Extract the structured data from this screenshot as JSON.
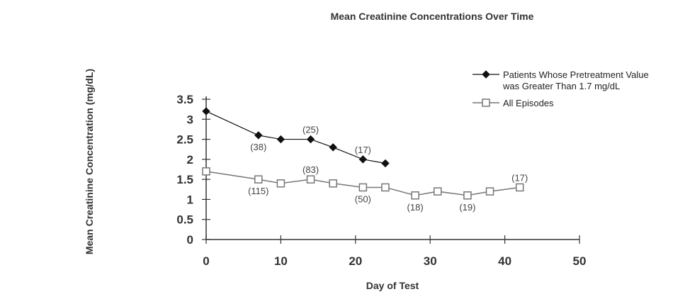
{
  "chart_data": {
    "type": "line",
    "title": "Mean Creatinine Concentrations Over Time",
    "xlabel": "Day of Test",
    "ylabel": "Mean Creatinine Concentration (mg/dL)",
    "xlim": [
      0,
      50
    ],
    "ylim": [
      0,
      3.5
    ],
    "xticks": [
      0,
      10,
      20,
      30,
      40,
      50
    ],
    "xtick_labels": [
      "0",
      "10",
      "20",
      "30",
      "40",
      "50"
    ],
    "yticks": [
      0,
      0.5,
      1,
      1.5,
      2,
      2.5,
      3,
      3.5
    ],
    "ytick_labels": [
      "0",
      "0.5",
      "1",
      "1.5",
      "2",
      "2.5",
      "3",
      "3.5"
    ],
    "grid": false,
    "legend_position": "top-right",
    "series": [
      {
        "name": "Patients Whose Pretreatment Value was Greater Than 1.7 mg/dL",
        "legend_lines": [
          "Patients Whose Pretreatment Value",
          "was Greater Than 1.7 mg/dL"
        ],
        "marker": "diamond-filled",
        "color": "#111111",
        "x": [
          0,
          7,
          10,
          14,
          17,
          21,
          24
        ],
        "y": [
          3.2,
          2.6,
          2.5,
          2.5,
          2.3,
          2.0,
          1.9
        ],
        "annotations": [
          {
            "x": 7,
            "y": 2.6,
            "text": "(38)",
            "position": "below"
          },
          {
            "x": 14,
            "y": 2.5,
            "text": "(25)",
            "position": "above"
          },
          {
            "x": 21,
            "y": 2.0,
            "text": "(17)",
            "position": "above"
          }
        ]
      },
      {
        "name": "All Episodes",
        "legend_lines": [
          "All Episodes"
        ],
        "marker": "square-open",
        "color": "#777777",
        "x": [
          0,
          7,
          10,
          14,
          17,
          21,
          24,
          28,
          31,
          35,
          38,
          42
        ],
        "y": [
          1.7,
          1.5,
          1.4,
          1.5,
          1.4,
          1.3,
          1.3,
          1.1,
          1.2,
          1.1,
          1.2,
          1.3
        ],
        "annotations": [
          {
            "x": 7,
            "y": 1.5,
            "text": "(115)",
            "position": "below"
          },
          {
            "x": 14,
            "y": 1.5,
            "text": "(83)",
            "position": "above"
          },
          {
            "x": 21,
            "y": 1.3,
            "text": "(50)",
            "position": "below"
          },
          {
            "x": 28,
            "y": 1.1,
            "text": "(18)",
            "position": "below"
          },
          {
            "x": 35,
            "y": 1.1,
            "text": "(19)",
            "position": "below"
          },
          {
            "x": 42,
            "y": 1.3,
            "text": "(17)",
            "position": "above"
          }
        ]
      }
    ]
  }
}
